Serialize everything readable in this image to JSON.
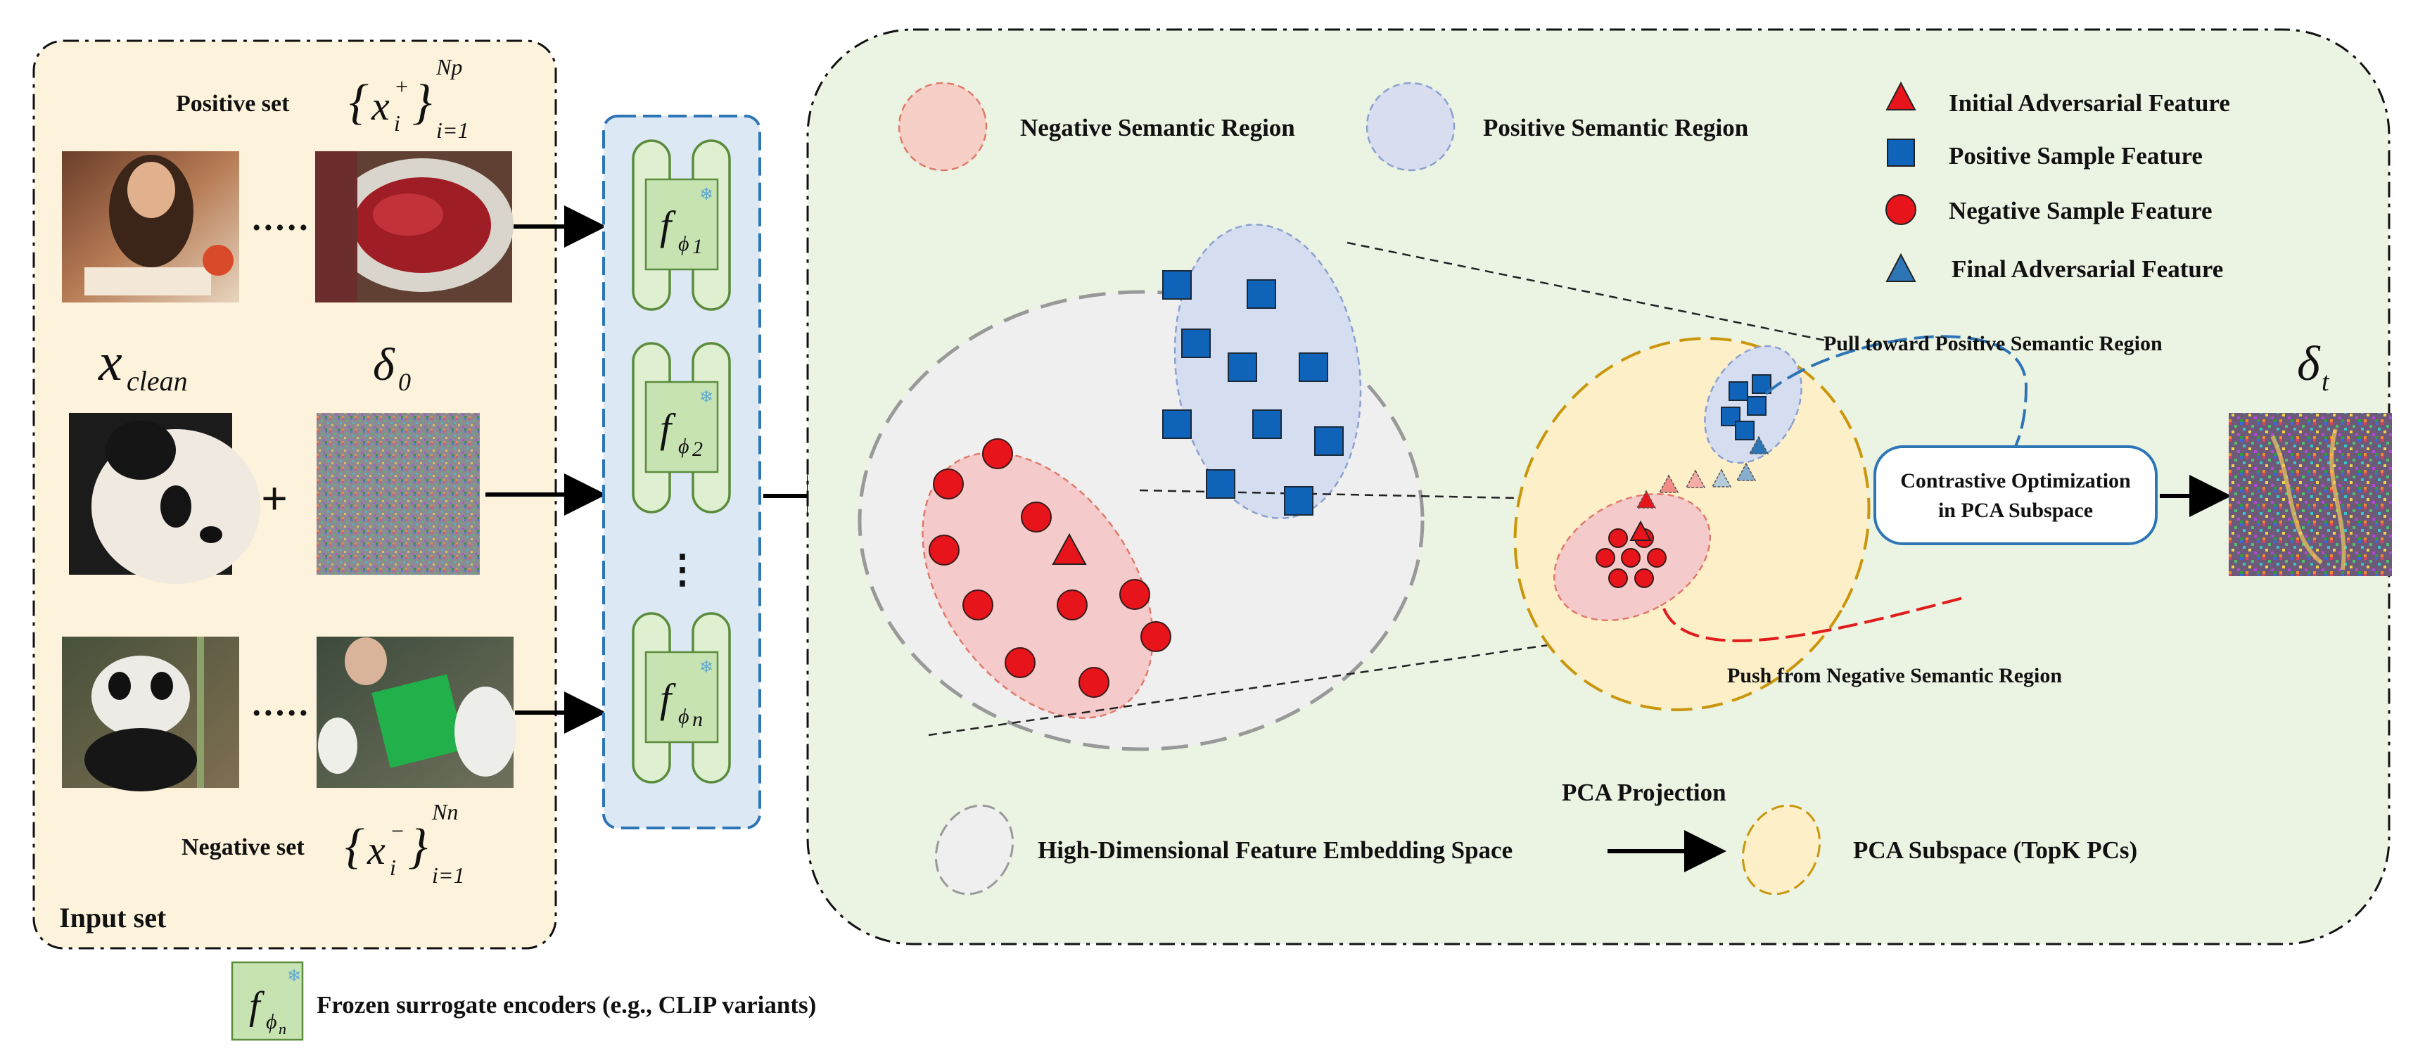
{
  "input_panel": {
    "title": "Input set",
    "positive_label": "Positive set",
    "negative_label": "Negative set",
    "positive_set": {
      "var": "x",
      "sup": "+",
      "sub": "i",
      "lower": "i=1",
      "upper": "Np"
    },
    "negative_set": {
      "var": "x",
      "sup": "−",
      "sub": "i",
      "lower": "i=1",
      "upper": "Nn"
    },
    "x_clean": {
      "var": "x",
      "sub": "clean"
    },
    "delta0": {
      "var": "δ",
      "sub": "0"
    },
    "plus": "+",
    "ellipsis": "·····"
  },
  "encoders": {
    "items": [
      {
        "f": "f",
        "phi": "ϕ",
        "idx": "1"
      },
      {
        "f": "f",
        "phi": "ϕ",
        "idx": "2"
      },
      {
        "f": "f",
        "phi": "ϕ",
        "idx": "n"
      }
    ],
    "vdots": "⋮",
    "snowflake": "❄"
  },
  "legend": {
    "neg_region": "Negative Semantic Region",
    "pos_region": "Positive Semantic Region",
    "initial_adv": "Initial Adversarial Feature",
    "pos_feature": "Positive Sample Feature",
    "neg_feature": "Negative Sample Feature",
    "final_adv": "Final Adversarial  Feature"
  },
  "annotations": {
    "pull": "Pull toward Positive Semantic Region",
    "push": "Push from Negative Semantic Region",
    "optimization_line1": "Contrastive Optimization",
    "optimization_line2": "in PCA Subspace",
    "delta_t": {
      "var": "δ",
      "sub": "t"
    }
  },
  "bottom_legend": {
    "pca_projection": "PCA Projection",
    "high_dim": "High-Dimensional Feature Embedding Space",
    "pca_subspace": "PCA Subspace (TopK PCs)"
  },
  "footer": {
    "encoder_caption": "Frozen surrogate encoders (e.g., CLIP variants)",
    "symbol": {
      "f": "f",
      "phi": "ϕ",
      "idx": "n"
    }
  },
  "colors": {
    "input_bg": "#fdf3dc",
    "encoder_bg": "#dce9f5",
    "encoder_border": "#2e75b6",
    "space_bg": "#ebf3e3",
    "encoder_green": "#5b8b3c",
    "encoder_fill": "#c7e3b2",
    "positive_blue": "#0f63b8",
    "negative_red": "#e8141b",
    "pos_region_fill": "#d5def0",
    "neg_region_fill": "#f5caca",
    "pca_fill": "#fdefc8",
    "pca_border": "#c9960c",
    "highdim_fill": "#efefef",
    "pull_arrow": "#2e75b6",
    "push_arrow": "#e01c1c"
  }
}
